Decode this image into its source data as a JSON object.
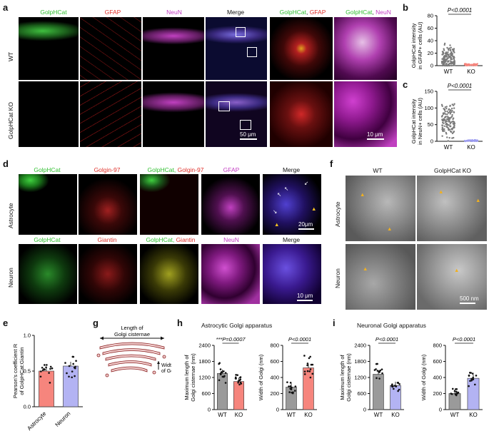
{
  "panel_a": {
    "label": "a",
    "channels": [
      "GolpHCat",
      "GFAP",
      "NeuN",
      "Merge"
    ],
    "zoom_channels": {
      "first": "GolpHCat",
      "second_gfap": "GFAP",
      "second_neun": "NeuN"
    },
    "rows": [
      "WT",
      "GolpHCat KO"
    ],
    "scale_main": "50 μm",
    "scale_zoom": "10 μm"
  },
  "panel_b": {
    "label": "b",
    "chart_data": {
      "type": "scatter",
      "ylabel": "GolpHCat intensity in GFAP+ cells (AU)",
      "categories": [
        "WT",
        "KO"
      ],
      "yticks": [
        0,
        20,
        40,
        60,
        80
      ],
      "ylim": [
        0,
        80
      ],
      "pvalue": "P<0.0001"
    }
  },
  "panel_c": {
    "label": "c",
    "chart_data": {
      "type": "scatter",
      "ylabel": "GolpHCat intensity in NeuN+ cells (AU)",
      "categories": [
        "WT",
        "KO"
      ],
      "yticks": [
        0,
        50,
        100,
        150
      ],
      "ylim": [
        0,
        150
      ],
      "pvalue": "P<0.0001"
    }
  },
  "panel_d": {
    "label": "d",
    "astro_channels": [
      "GolpHCat",
      "Golgin-97",
      "GolpHCat,",
      "Golgin-97",
      "GFAP",
      "Merge"
    ],
    "neuron_channels": [
      "GolpHCat",
      "Giantin",
      "GolpHCat,",
      "Giantin",
      "NeuN",
      "Merge"
    ],
    "rows": [
      "Astrocyte",
      "Neuron"
    ],
    "scale_astro": "20μm",
    "scale_neuron": "10 μm"
  },
  "panel_f": {
    "label": "f",
    "columns": [
      "WT",
      "GolpHCat KO"
    ],
    "rows": [
      "Astrocyte",
      "Neuron"
    ],
    "scale": "500 nm"
  },
  "panel_e": {
    "label": "e",
    "chart_data": {
      "type": "bar",
      "ylabel": "Pearson's coefficient R of GolpHCat:Giantin",
      "categories": [
        "Astrocyte",
        "Neuron"
      ],
      "values": [
        0.5,
        0.57
      ],
      "yticks": [
        "0.0",
        "0.5",
        "1.0"
      ],
      "ylim": [
        0,
        1.0
      ],
      "colors": [
        "#f6857d",
        "#b3b3f3"
      ]
    }
  },
  "panel_g": {
    "label": "g",
    "length_label": "Length of Golgi cisternae",
    "width_label": "Width of Golgi"
  },
  "panel_h": {
    "label": "h",
    "title": "Astrocytic Golgi apparatus",
    "chart_data": [
      {
        "type": "bar",
        "ylabel": "Maximum length of Golgi cisternae (nm)",
        "categories": [
          "WT",
          "KO"
        ],
        "values": [
          1350,
          1050
        ],
        "yticks": [
          0,
          600,
          1200,
          1800,
          2400
        ],
        "ylim": [
          0,
          2400
        ],
        "pvalue": "***P=0.0007",
        "colors": [
          "#9a9a9a",
          "#f6857d"
        ]
      },
      {
        "type": "bar",
        "ylabel": "Width of Golgi (nm)",
        "categories": [
          "WT",
          "KO"
        ],
        "values": [
          280,
          520
        ],
        "yticks": [
          0,
          200,
          400,
          600,
          800
        ],
        "ylim": [
          0,
          800
        ],
        "pvalue": "P<0.0001",
        "colors": [
          "#9a9a9a",
          "#f6857d"
        ]
      }
    ]
  },
  "panel_i": {
    "label": "i",
    "title": "Neuronal Golgi apparatus",
    "chart_data": [
      {
        "type": "bar",
        "ylabel": "Maximum length of Golgi cisternae (nm)",
        "categories": [
          "WT",
          "KO"
        ],
        "values": [
          1320,
          900
        ],
        "yticks": [
          0,
          600,
          1200,
          1800,
          2400
        ],
        "ylim": [
          0,
          2400
        ],
        "pvalue": "P<0.0001",
        "colors": [
          "#9a9a9a",
          "#b3b3f3"
        ]
      },
      {
        "type": "bar",
        "ylabel": "Width of Golgi (nm)",
        "categories": [
          "WT",
          "KO"
        ],
        "values": [
          200,
          390
        ],
        "yticks": [
          0,
          200,
          400,
          600,
          800
        ],
        "ylim": [
          0,
          800
        ],
        "pvalue": "P<0.0001",
        "colors": [
          "#9a9a9a",
          "#b3b3f3"
        ]
      }
    ]
  }
}
